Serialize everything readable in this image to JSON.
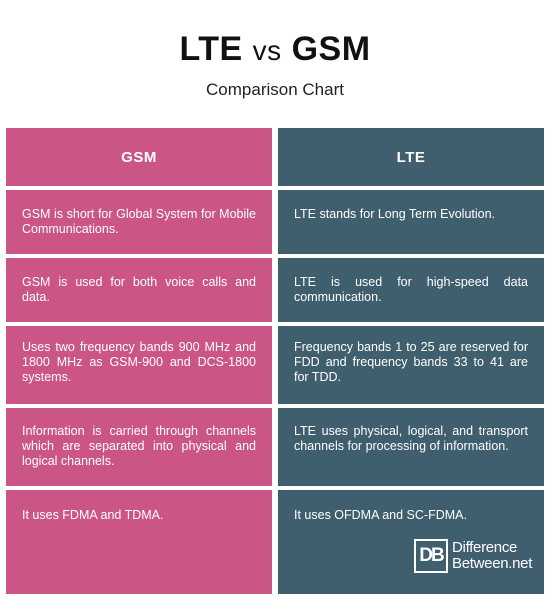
{
  "title": {
    "left": "LTE",
    "vs": "vs",
    "right": "GSM"
  },
  "subtitle": "Comparison Chart",
  "colors": {
    "gsm": "#cc5588",
    "lte": "#3f5e6e"
  },
  "columns": [
    {
      "header": "GSM",
      "rows": [
        "GSM is short for Global System for Mobile Communications.",
        "GSM is used for both voice calls and data.",
        "Uses two frequency bands 900 MHz and 1800 MHz as GSM-900 and DCS-1800 systems.",
        "Information is carried through channels which are separated into physical and logical channels.",
        "It uses FDMA and TDMA."
      ]
    },
    {
      "header": "LTE",
      "rows": [
        "LTE stands for Long Term Evolution.",
        "LTE is used for high-speed data communication.",
        "Frequency bands 1 to 25 are reserved for FDD and frequency bands 33 to 41 are for TDD.",
        "LTE uses physical, logical, and transport channels for processing of information.",
        "It uses OFDMA and SC-FDMA."
      ]
    }
  ],
  "logo": {
    "mark": "DB",
    "line1": "Difference",
    "line2": "Between.net"
  }
}
